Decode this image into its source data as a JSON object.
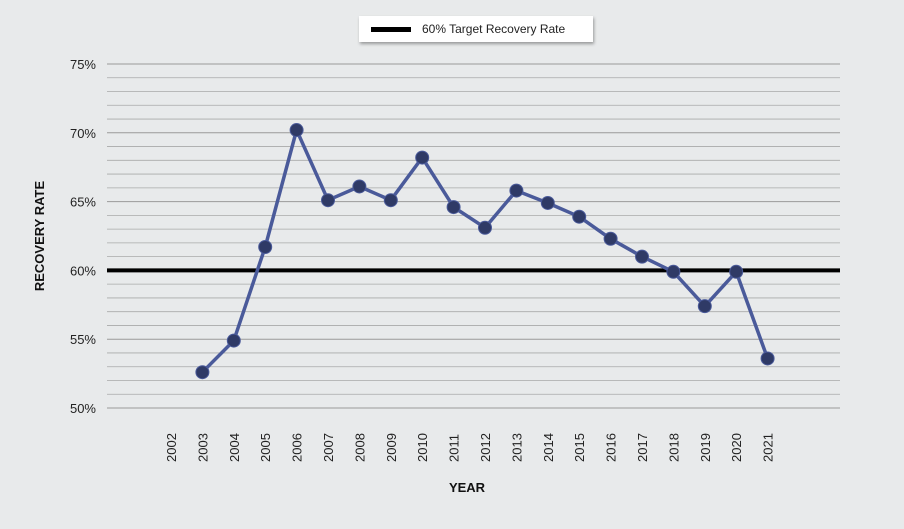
{
  "chart_data": {
    "type": "line",
    "xlabel": "YEAR",
    "ylabel": "RECOVERY RATE",
    "categories": [
      "2002",
      "2003",
      "2004",
      "2005",
      "2006",
      "2007",
      "2008",
      "2009",
      "2010",
      "2011",
      "2012",
      "2013",
      "2014",
      "2015",
      "2016",
      "2017",
      "2018",
      "2019",
      "2020",
      "2021"
    ],
    "series": [
      {
        "color": "#4a5a9a",
        "values": [
          null,
          52.6,
          54.9,
          61.7,
          70.2,
          65.1,
          66.1,
          65.1,
          68.2,
          64.6,
          63.1,
          65.8,
          64.9,
          63.9,
          62.3,
          61.0,
          59.9,
          57.4,
          59.9,
          53.6
        ]
      }
    ],
    "target": {
      "label": "60% Target Recovery Rate",
      "value": 60,
      "color": "#000000"
    },
    "ylim": [
      50,
      75
    ],
    "yticks": [
      50,
      55,
      60,
      65,
      70,
      75
    ],
    "ytick_labels": [
      "50%",
      "55%",
      "60%",
      "65%",
      "70%",
      "75%"
    ],
    "grid": true,
    "legend_position": "top-center"
  }
}
